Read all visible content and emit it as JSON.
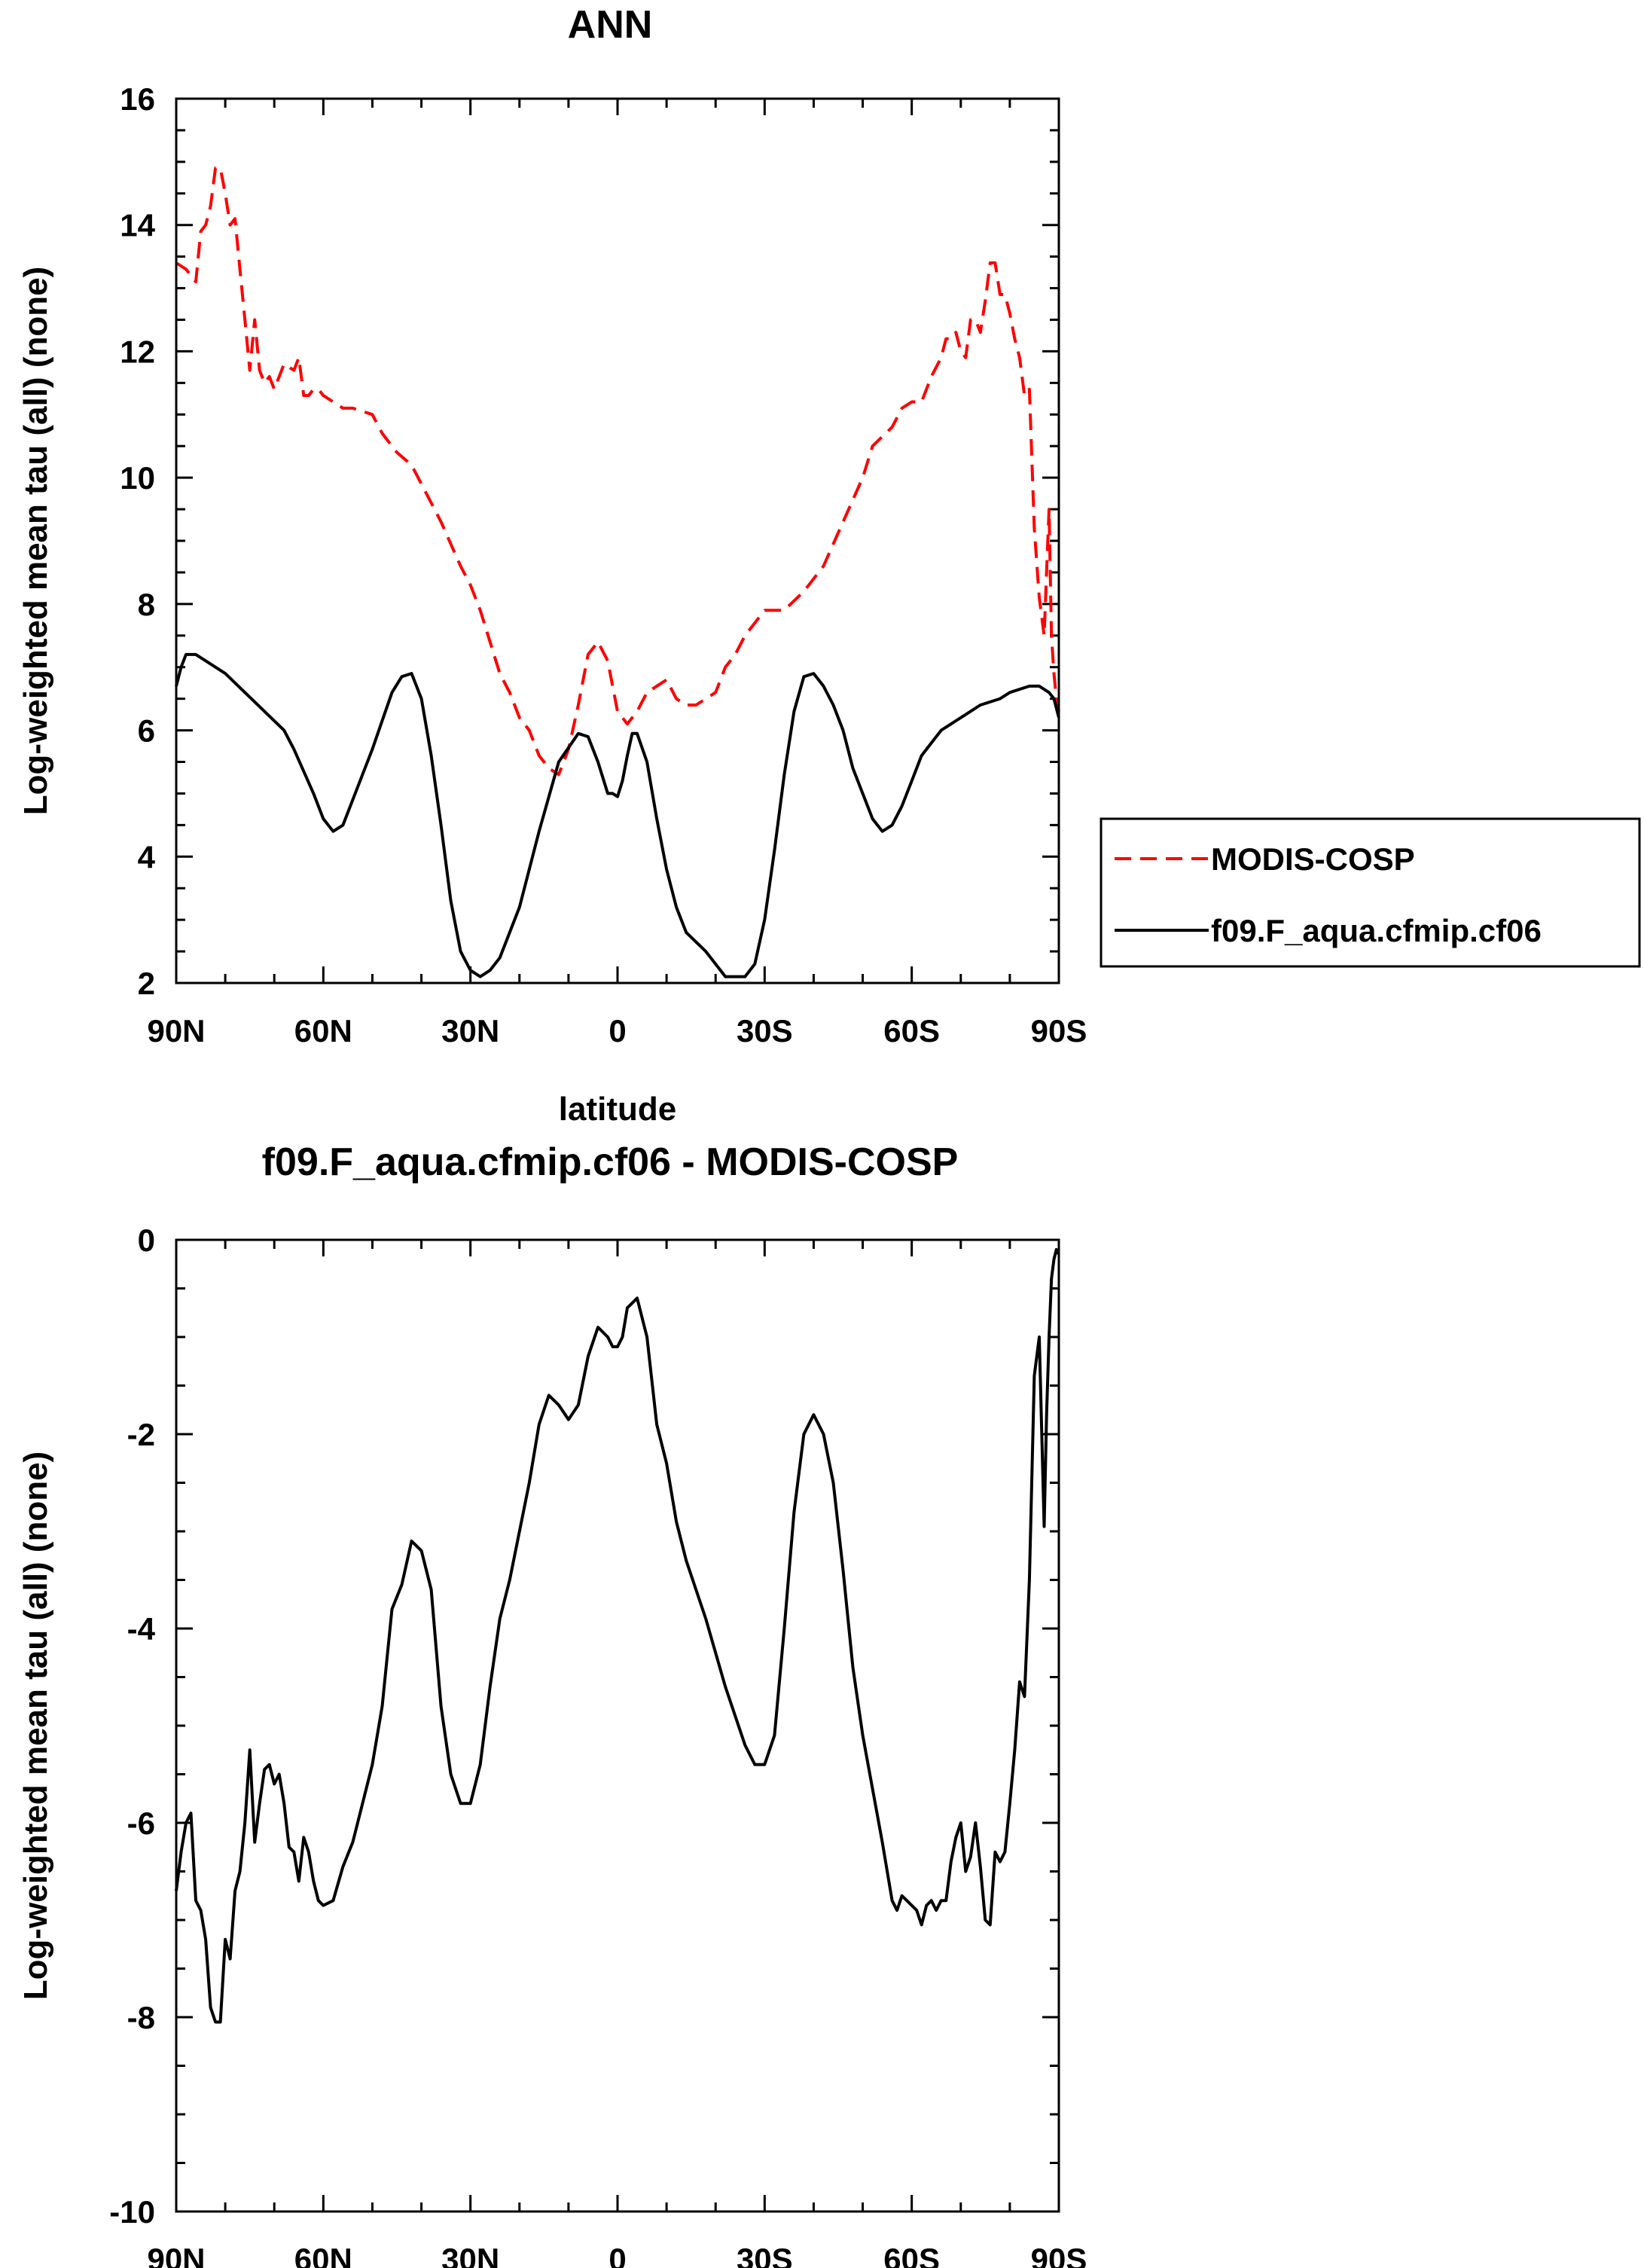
{
  "chart_data": [
    {
      "type": "line",
      "title": "ANN",
      "xlabel": "latitude",
      "ylabel": "Log-weighted mean tau (all) (none)",
      "xlim": [
        90,
        -90
      ],
      "ylim": [
        2,
        16
      ],
      "x_ticks": [
        90,
        60,
        30,
        0,
        -30,
        -60,
        -90
      ],
      "x_tick_labels": [
        "90N",
        "60N",
        "30N",
        "0",
        "30S",
        "60S",
        "90S"
      ],
      "y_ticks": [
        2,
        4,
        6,
        8,
        10,
        12,
        14,
        16
      ],
      "y_tick_labels": [
        "2",
        "4",
        "6",
        "8",
        "10",
        "12",
        "14",
        "16"
      ],
      "legend_position": "right",
      "series": [
        {
          "name": "MODIS-COSP",
          "color": "#ff0000",
          "dash": "dashed",
          "x": [
            90,
            88,
            86,
            85,
            84,
            83,
            82,
            81,
            80,
            79,
            78,
            77,
            76,
            75,
            74,
            73,
            72,
            71,
            70,
            69,
            68,
            66,
            65,
            64,
            63,
            62,
            61,
            60,
            58,
            56,
            54,
            50,
            48,
            45,
            42,
            40,
            36,
            32,
            30,
            28,
            24,
            22,
            20,
            18,
            16,
            14,
            12,
            10,
            8,
            6,
            4,
            2,
            1,
            0,
            -2,
            -4,
            -6,
            -8,
            -10,
            -12,
            -14,
            -16,
            -18,
            -20,
            -22,
            -24,
            -26,
            -30,
            -34,
            -38,
            -42,
            -46,
            -50,
            -52,
            -56,
            -58,
            -60,
            -62,
            -64,
            -66,
            -67,
            -68,
            -69,
            -70,
            -71,
            -72,
            -73,
            -74,
            -75,
            -76,
            -77,
            -78,
            -79,
            -80,
            -81,
            -82,
            -83,
            -84,
            -85,
            -86,
            -87,
            -87.5,
            -88,
            -88.5,
            -89,
            -89.5,
            -90
          ],
          "values": [
            13.4,
            13.3,
            13.1,
            13.9,
            14.0,
            14.3,
            14.9,
            14.9,
            14.5,
            14.0,
            14.1,
            13.3,
            12.5,
            11.7,
            12.5,
            11.7,
            11.5,
            11.6,
            11.4,
            11.6,
            11.8,
            11.7,
            11.9,
            11.3,
            11.3,
            11.4,
            11.4,
            11.3,
            11.2,
            11.1,
            11.1,
            11.0,
            10.7,
            10.4,
            10.2,
            9.9,
            9.3,
            8.6,
            8.3,
            7.9,
            6.9,
            6.6,
            6.2,
            6.0,
            5.6,
            5.4,
            5.3,
            5.7,
            6.4,
            7.2,
            7.4,
            7.1,
            6.7,
            6.3,
            6.1,
            6.3,
            6.6,
            6.7,
            6.8,
            6.5,
            6.4,
            6.4,
            6.5,
            6.6,
            7.0,
            7.2,
            7.5,
            7.9,
            7.9,
            8.2,
            8.6,
            9.3,
            10.0,
            10.5,
            10.8,
            11.1,
            11.2,
            11.2,
            11.6,
            11.9,
            12.2,
            12.2,
            12.3,
            12.0,
            11.9,
            12.5,
            12.5,
            12.3,
            12.8,
            13.4,
            13.4,
            12.9,
            12.9,
            12.6,
            12.2,
            11.9,
            11.3,
            11.4,
            9.2,
            8.1,
            7.5,
            8.5,
            9.5,
            7.5,
            6.9,
            6.5,
            6.3
          ],
          "rendered_values": [
            13.4,
            13.3,
            13.1,
            13.9,
            14.0,
            14.3,
            14.9,
            14.9,
            14.5,
            14.0,
            14.1,
            13.3,
            12.5,
            11.7,
            12.5,
            11.7,
            11.5,
            11.6,
            11.4,
            11.6,
            11.8,
            11.7,
            11.9,
            11.3,
            11.3,
            11.4,
            11.4,
            11.3,
            11.2,
            11.1,
            11.1,
            11.0,
            10.7,
            10.4,
            10.2,
            9.9,
            9.3,
            8.6,
            8.3,
            7.9,
            6.9,
            6.6,
            6.2,
            6.0,
            5.6,
            5.4,
            5.3,
            5.7,
            6.4,
            7.2,
            7.4,
            7.1,
            6.7,
            6.3,
            6.1,
            6.3,
            6.6,
            6.7,
            6.8,
            6.5,
            6.4,
            6.4,
            6.5,
            6.6,
            7.0,
            7.2,
            7.5,
            7.9,
            7.9,
            8.2,
            8.6,
            9.3,
            10.0,
            10.5,
            10.8,
            11.1,
            11.2,
            11.2,
            11.6,
            11.9,
            12.2,
            12.2,
            12.3,
            12.0,
            11.9,
            12.5,
            12.5,
            12.3,
            12.8,
            13.4,
            13.4,
            12.9,
            12.9,
            12.6,
            12.2,
            11.9,
            11.3,
            11.4,
            9.2,
            8.1,
            7.5,
            8.5,
            9.5,
            7.5,
            6.9,
            6.5,
            6.3
          ]
        },
        {
          "name": "f09.F_aqua.cfmip.cf06",
          "color": "#000000",
          "dash": "solid",
          "x": [
            90,
            89,
            88,
            86,
            84,
            80,
            76,
            72,
            68,
            66,
            62,
            60,
            58,
            56,
            54,
            50,
            46,
            44,
            42,
            40,
            38,
            36,
            34,
            32,
            30,
            28,
            26,
            24,
            22,
            20,
            18,
            16,
            12,
            8,
            6,
            4,
            2,
            1,
            0,
            -1,
            -2,
            -3,
            -4,
            -6,
            -8,
            -10,
            -12,
            -14,
            -18,
            -22,
            -26,
            -28,
            -30,
            -32,
            -34,
            -36,
            -38,
            -40,
            -42,
            -44,
            -46,
            -48,
            -52,
            -54,
            -56,
            -58,
            -60,
            -62,
            -66,
            -70,
            -74,
            -78,
            -80,
            -84,
            -86,
            -88,
            -89,
            -90
          ],
          "values": [
            6.7,
            7.0,
            7.2,
            7.2,
            7.1,
            6.9,
            6.6,
            6.3,
            6.0,
            5.7,
            5.0,
            4.6,
            4.4,
            4.5,
            4.9,
            5.7,
            6.6,
            6.85,
            6.9,
            6.5,
            5.6,
            4.5,
            3.3,
            2.5,
            2.2,
            2.1,
            2.2,
            2.4,
            2.8,
            3.2,
            3.8,
            4.4,
            5.5,
            5.95,
            5.9,
            5.5,
            5.0,
            5.0,
            4.95,
            5.2,
            5.6,
            5.95,
            5.95,
            5.5,
            4.6,
            3.8,
            3.2,
            2.8,
            2.5,
            2.1,
            2.1,
            2.3,
            3.0,
            4.1,
            5.3,
            6.3,
            6.85,
            6.9,
            6.7,
            6.4,
            6.0,
            5.4,
            4.6,
            4.4,
            4.5,
            4.8,
            5.2,
            5.6,
            6.0,
            6.2,
            6.4,
            6.5,
            6.6,
            6.7,
            6.7,
            6.6,
            6.5,
            6.2
          ]
        }
      ]
    },
    {
      "type": "line",
      "title": "f09.F_aqua.cfmip.cf06 - MODIS-COSP",
      "xlabel": "latitude",
      "ylabel": "Log-weighted mean tau (all) (none)",
      "xlim": [
        90,
        -90
      ],
      "ylim": [
        -10,
        0
      ],
      "x_ticks": [
        90,
        60,
        30,
        0,
        -30,
        -60,
        -90
      ],
      "x_tick_labels": [
        "90N",
        "60N",
        "30N",
        "0",
        "30S",
        "60S",
        "90S"
      ],
      "y_ticks": [
        -10,
        -8,
        -6,
        -4,
        -2,
        0
      ],
      "y_tick_labels": [
        "-10",
        "-8",
        "-6",
        "-4",
        "-2",
        "0"
      ],
      "series": [
        {
          "color": "#000000",
          "dash": "solid",
          "x": [
            90,
            89,
            88,
            87,
            86,
            85,
            84,
            83,
            82,
            81,
            80,
            79,
            78,
            77,
            76,
            75,
            74,
            73,
            72,
            71,
            70,
            69,
            68,
            67,
            66,
            65,
            64,
            63,
            62,
            61,
            60,
            58,
            56,
            54,
            52,
            50,
            48,
            46,
            44,
            42,
            40,
            38,
            36,
            34,
            32,
            30,
            28,
            26,
            24,
            22,
            20,
            18,
            16,
            14,
            12,
            10,
            8,
            6,
            4,
            2,
            1,
            0,
            -1,
            -2,
            -3,
            -4,
            -6,
            -8,
            -10,
            -12,
            -14,
            -18,
            -22,
            -26,
            -28,
            -30,
            -32,
            -34,
            -36,
            -38,
            -40,
            -42,
            -44,
            -46,
            -48,
            -50,
            -54,
            -56,
            -57,
            -58,
            -59,
            -60,
            -61,
            -62,
            -63,
            -64,
            -65,
            -66,
            -67,
            -68,
            -69,
            -70,
            -71,
            -72,
            -73,
            -74,
            -75,
            -76,
            -77,
            -78,
            -79,
            -80,
            -81,
            -82,
            -83,
            -84,
            -85,
            -86,
            -87,
            -87.5,
            -88,
            -88.5,
            -89,
            -89.5,
            -90
          ],
          "values": [
            -6.7,
            -6.3,
            -6.0,
            -5.9,
            -6.8,
            -6.9,
            -7.2,
            -7.9,
            -8.05,
            -8.05,
            -7.2,
            -7.4,
            -6.7,
            -6.5,
            -6.0,
            -5.25,
            -6.2,
            -5.8,
            -5.45,
            -5.4,
            -5.6,
            -5.5,
            -5.8,
            -6.25,
            -6.3,
            -6.6,
            -6.15,
            -6.3,
            -6.6,
            -6.8,
            -6.85,
            -6.8,
            -6.45,
            -6.2,
            -5.8,
            -5.4,
            -4.8,
            -3.8,
            -3.55,
            -3.1,
            -3.2,
            -3.6,
            -4.8,
            -5.5,
            -5.8,
            -5.8,
            -5.4,
            -4.6,
            -3.9,
            -3.5,
            -3.0,
            -2.5,
            -1.9,
            -1.6,
            -1.7,
            -1.85,
            -1.7,
            -1.2,
            -0.9,
            -1.0,
            -1.1,
            -1.1,
            -1.0,
            -0.7,
            -0.65,
            -0.6,
            -1.0,
            -1.9,
            -2.3,
            -2.9,
            -3.3,
            -3.9,
            -4.6,
            -5.2,
            -5.4,
            -5.4,
            -5.1,
            -4.0,
            -2.8,
            -2.0,
            -1.8,
            -2.0,
            -2.5,
            -3.4,
            -4.4,
            -5.1,
            -6.2,
            -6.8,
            -6.9,
            -6.75,
            -6.8,
            -6.85,
            -6.9,
            -7.05,
            -6.85,
            -6.8,
            -6.9,
            -6.8,
            -6.8,
            -6.4,
            -6.15,
            -6.0,
            -6.5,
            -6.35,
            -6.0,
            -6.45,
            -7.0,
            -7.05,
            -6.3,
            -6.4,
            -6.3,
            -5.8,
            -5.25,
            -4.55,
            -4.7,
            -3.5,
            -1.4,
            -1.0,
            -2.95,
            -1.8,
            -1.0,
            -0.4,
            -0.2,
            -0.1,
            -0.15
          ]
        }
      ]
    }
  ]
}
